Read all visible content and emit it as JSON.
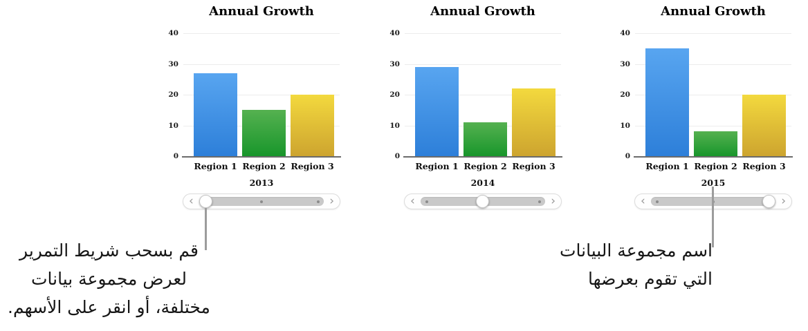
{
  "chart_data": [
    {
      "type": "bar",
      "title": "Annual Growth",
      "categories": [
        "Region 1",
        "Region 2",
        "Region 3"
      ],
      "values": [
        27,
        15,
        20
      ],
      "x_group_label": "2013",
      "xlabel": "",
      "ylabel": "",
      "ylim": [
        0,
        40
      ],
      "yticks": [
        0,
        10,
        20,
        30,
        40
      ],
      "grid": true,
      "legend": "none",
      "bar_colors": [
        {
          "top": "#58a5f0",
          "bottom": "#2d7fd9"
        },
        {
          "top": "#55b150",
          "bottom": "#18962b"
        },
        {
          "top": "#f3d93e",
          "bottom": "#cda42f"
        }
      ]
    },
    {
      "type": "bar",
      "title": "Annual Growth",
      "categories": [
        "Region 1",
        "Region 2",
        "Region 3"
      ],
      "values": [
        29,
        11,
        22
      ],
      "x_group_label": "2014",
      "xlabel": "",
      "ylabel": "",
      "ylim": [
        0,
        40
      ],
      "yticks": [
        0,
        10,
        20,
        30,
        40
      ],
      "grid": true,
      "legend": "none",
      "bar_colors": [
        {
          "top": "#58a5f0",
          "bottom": "#2d7fd9"
        },
        {
          "top": "#55b150",
          "bottom": "#18962b"
        },
        {
          "top": "#f3d93e",
          "bottom": "#cda42f"
        }
      ]
    },
    {
      "type": "bar",
      "title": "Annual Growth",
      "categories": [
        "Region 1",
        "Region 2",
        "Region 3"
      ],
      "values": [
        35,
        8,
        20
      ],
      "x_group_label": "2015",
      "xlabel": "",
      "ylabel": "",
      "ylim": [
        0,
        40
      ],
      "yticks": [
        0,
        10,
        20,
        30,
        40
      ],
      "grid": true,
      "legend": "none",
      "bar_colors": [
        {
          "top": "#58a5f0",
          "bottom": "#2d7fd9"
        },
        {
          "top": "#55b150",
          "bottom": "#18962b"
        },
        {
          "top": "#f3d93e",
          "bottom": "#cda42f"
        }
      ]
    }
  ],
  "sliders": [
    {
      "thumb": "left",
      "dots": [
        "middle",
        "right"
      ],
      "prev_icon": "‹",
      "next_icon": "›"
    },
    {
      "thumb": "middle",
      "dots": [
        "left",
        "right"
      ],
      "prev_icon": "‹",
      "next_icon": "›"
    },
    {
      "thumb": "right",
      "dots": [
        "left",
        "middle"
      ],
      "prev_icon": "‹",
      "next_icon": "›"
    }
  ],
  "annotations": {
    "left": {
      "lines": [
        "قم بسحب شريط التمرير",
        "لعرض مجموعة بيانات",
        "مختلفة، أو انقر على الأسهم."
      ]
    },
    "right": {
      "lines": [
        "اسم مجموعة البيانات",
        "التي تقوم بعرضها"
      ]
    }
  },
  "colors": {
    "gridline": "#ececec",
    "axis_line": "#6b6b6b",
    "callout_line": "#9c9c9c",
    "slider_track": "#c9c9c9"
  }
}
